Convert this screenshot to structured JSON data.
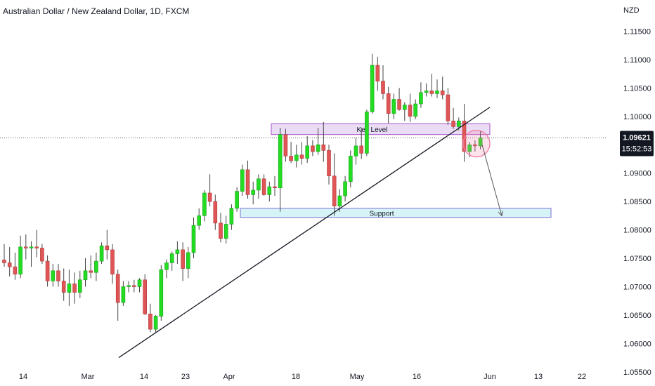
{
  "chart_data": {
    "type": "candlestick",
    "title": "Australian Dollar / New Zealand Dollar, 1D, FXCM",
    "currency": "NZD",
    "x_labels": [
      "14",
      "Mar",
      "14",
      "23",
      "Apr",
      "18",
      "May",
      "16",
      "Jun",
      "13",
      "22"
    ],
    "y_ticks": [
      "1.11500",
      "1.11000",
      "1.10500",
      "1.10000",
      "1.09000",
      "1.08500",
      "1.08000",
      "1.07500",
      "1.07000",
      "1.06500",
      "1.06000",
      "1.05500"
    ],
    "ylim": [
      1.0525,
      1.1205
    ],
    "current_price": "1.09621",
    "countdown": "15:52:53",
    "colors": {
      "up": "#22dd22",
      "down": "#e05555",
      "wick": "#444444",
      "key_level_fill": "#eadcf5",
      "key_level_stroke": "#a64fc9",
      "support_fill": "#d6f3f7",
      "support_stroke": "#7b6fd0",
      "price_tag": "#131722",
      "circle": "#f07aa0"
    },
    "candles": [
      [
        1.0747,
        1.0775,
        1.0735,
        1.0742
      ],
      [
        1.0742,
        1.077,
        1.0718,
        1.0735
      ],
      [
        1.0735,
        1.076,
        1.0712,
        1.0722
      ],
      [
        1.0722,
        1.079,
        1.0715,
        1.077
      ],
      [
        1.077,
        1.0792,
        1.0748,
        1.0768
      ],
      [
        1.0768,
        1.078,
        1.0735,
        1.077
      ],
      [
        1.077,
        1.08,
        1.0752,
        1.0768
      ],
      [
        1.0768,
        1.0775,
        1.074,
        1.0745
      ],
      [
        1.0745,
        1.0755,
        1.07,
        1.071
      ],
      [
        1.071,
        1.074,
        1.07,
        1.0728
      ],
      [
        1.0728,
        1.074,
        1.07,
        1.071
      ],
      [
        1.071,
        1.0732,
        1.0675,
        1.069
      ],
      [
        1.069,
        1.073,
        1.0666,
        1.0705
      ],
      [
        1.0705,
        1.0725,
        1.067,
        1.069
      ],
      [
        1.069,
        1.0728,
        1.068,
        1.0712
      ],
      [
        1.0712,
        1.075,
        1.07,
        1.0728
      ],
      [
        1.0728,
        1.0755,
        1.0715,
        1.0725
      ],
      [
        1.0725,
        1.076,
        1.071,
        1.0745
      ],
      [
        1.0745,
        1.0778,
        1.074,
        1.0772
      ],
      [
        1.0772,
        1.08,
        1.0748,
        1.0765
      ],
      [
        1.0765,
        1.0775,
        1.0705,
        1.0722
      ],
      [
        1.0722,
        1.073,
        1.064,
        1.0672
      ],
      [
        1.0672,
        1.071,
        1.0666,
        1.07
      ],
      [
        1.07,
        1.071,
        1.069,
        1.0702
      ],
      [
        1.0702,
        1.0712,
        1.069,
        1.07
      ],
      [
        1.07,
        1.0715,
        1.069,
        1.0712
      ],
      [
        1.0712,
        1.0722,
        1.065,
        1.0652
      ],
      [
        1.0652,
        1.067,
        1.062,
        1.0625
      ],
      [
        1.0625,
        1.065,
        1.062,
        1.0648
      ],
      [
        1.0648,
        1.0738,
        1.064,
        1.073
      ],
      [
        1.073,
        1.0748,
        1.0715,
        1.0742
      ],
      [
        1.0742,
        1.0762,
        1.0728,
        1.0758
      ],
      [
        1.0758,
        1.078,
        1.074,
        1.0765
      ],
      [
        1.0765,
        1.0778,
        1.071,
        1.0732
      ],
      [
        1.0732,
        1.077,
        1.0715,
        1.076
      ],
      [
        1.076,
        1.0822,
        1.075,
        1.0808
      ],
      [
        1.0808,
        1.0838,
        1.08,
        1.0825
      ],
      [
        1.0825,
        1.087,
        1.0815,
        1.0865
      ],
      [
        1.0865,
        1.0898,
        1.0842,
        1.085
      ],
      [
        1.085,
        1.0862,
        1.08,
        1.0812
      ],
      [
        1.0812,
        1.083,
        1.0778,
        1.0785
      ],
      [
        1.0785,
        1.0825,
        1.0776,
        1.081
      ],
      [
        1.081,
        1.0845,
        1.08,
        1.0838
      ],
      [
        1.0838,
        1.0875,
        1.0832,
        1.0868
      ],
      [
        1.0868,
        1.0915,
        1.086,
        1.0906
      ],
      [
        1.0906,
        1.0922,
        1.0855,
        1.0862
      ],
      [
        1.0862,
        1.0885,
        1.0845,
        1.087
      ],
      [
        1.087,
        1.0898,
        1.0855,
        1.089
      ],
      [
        1.089,
        1.0898,
        1.086,
        1.0862
      ],
      [
        1.0862,
        1.0885,
        1.085,
        1.0876
      ],
      [
        1.0876,
        1.0895,
        1.086,
        1.0874
      ],
      [
        1.0874,
        1.098,
        1.0832,
        1.0968
      ],
      [
        1.0968,
        1.0978,
        1.092,
        1.093
      ],
      [
        1.093,
        1.0955,
        1.0918,
        1.0922
      ],
      [
        1.0922,
        1.095,
        1.091,
        1.0932
      ],
      [
        1.0932,
        1.0955,
        1.0915,
        1.0926
      ],
      [
        1.0926,
        1.0965,
        1.0918,
        1.0948
      ],
      [
        1.0948,
        1.0958,
        1.093,
        1.0938
      ],
      [
        1.0938,
        1.098,
        1.0932,
        1.095
      ],
      [
        1.095,
        1.099,
        1.092,
        1.094
      ],
      [
        1.094,
        1.095,
        1.088,
        1.0895
      ],
      [
        1.0895,
        1.0935,
        1.0825,
        1.0842
      ],
      [
        1.0842,
        1.0872,
        1.0832,
        1.086
      ],
      [
        1.086,
        1.0895,
        1.085,
        1.0885
      ],
      [
        1.0885,
        1.094,
        1.0875,
        1.093
      ],
      [
        1.093,
        1.0962,
        1.0915,
        1.0948
      ],
      [
        1.0948,
        1.098,
        1.0925,
        1.0935
      ],
      [
        1.0935,
        1.1012,
        1.093,
        1.1008
      ],
      [
        1.1008,
        1.111,
        1.1005,
        1.109
      ],
      [
        1.109,
        1.1105,
        1.1045,
        1.1062
      ],
      [
        1.1062,
        1.109,
        1.103,
        1.104
      ],
      [
        1.104,
        1.1052,
        1.0988,
        1.1005
      ],
      [
        1.1005,
        1.104,
        1.0995,
        1.103
      ],
      [
        1.103,
        1.105,
        1.101,
        1.1012
      ],
      [
        1.1012,
        1.1025,
        1.0992,
        1.102
      ],
      [
        1.102,
        1.104,
        1.099,
        1.1
      ],
      [
        1.1,
        1.103,
        1.0995,
        1.1022
      ],
      [
        1.1022,
        1.106,
        1.1015,
        1.1042
      ],
      [
        1.1042,
        1.1058,
        1.1035,
        1.1045
      ],
      [
        1.1045,
        1.1075,
        1.1035,
        1.104
      ],
      [
        1.104,
        1.1065,
        1.1032,
        1.1045
      ],
      [
        1.1045,
        1.107,
        1.103,
        1.1038
      ],
      [
        1.1038,
        1.105,
        1.0985,
        1.0992
      ],
      [
        1.0992,
        1.1015,
        1.0978,
        1.0982
      ],
      [
        1.0982,
        1.0998,
        1.0975,
        1.0992
      ],
      [
        1.0992,
        1.1022,
        1.092,
        1.0938
      ],
      [
        1.0938,
        1.0955,
        1.0928,
        1.095
      ],
      [
        1.095,
        1.0958,
        1.0938,
        1.0948
      ],
      [
        1.0948,
        1.0975,
        1.0942,
        1.0962
      ]
    ],
    "trendline": {
      "points": [
        [
          169,
          1.0575
        ],
        [
          697,
          1.1016
        ]
      ]
    },
    "key_level": {
      "label": "Key Level",
      "x_range": [
        386,
        697
      ],
      "y_range": [
        1.0968,
        1.0987
      ]
    },
    "support": {
      "label": "Support",
      "x_range": [
        342,
        784
      ],
      "y_range": [
        1.0822,
        1.0838
      ]
    },
    "projection_arrow": {
      "from": [
        686,
        1.095
      ],
      "to": [
        714,
        1.0825
      ]
    },
    "highlight_circle": {
      "x": 678,
      "price": 1.0952
    }
  }
}
